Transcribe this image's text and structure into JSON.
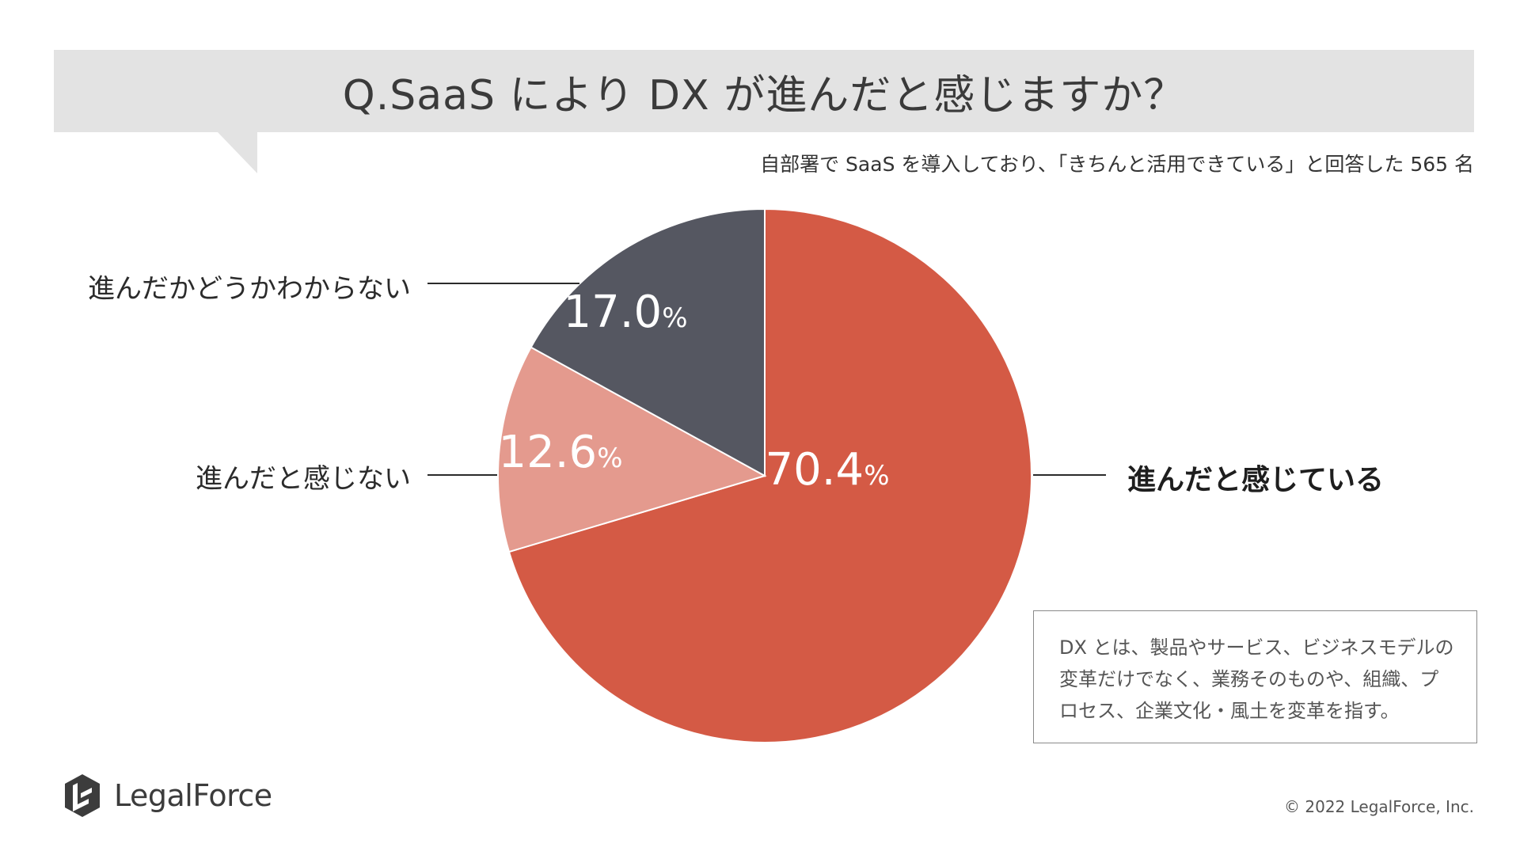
{
  "header": {
    "title": "Q.SaaS により DX が進んだと感じますか？",
    "subtitle": "自部署で SaaS を導入しており、「きちんと活用できている」と回答した 565 名"
  },
  "chart_data": {
    "type": "pie",
    "title": "Q.SaaS により DX が進んだと感じますか？",
    "slices": [
      {
        "label": "進んだと感じている",
        "value": 70.4,
        "display": "70.4",
        "unit": "%",
        "color": "#d45a45"
      },
      {
        "label": "進んだと感じない",
        "value": 12.6,
        "display": "12.6",
        "unit": "%",
        "color": "#e49a8e"
      },
      {
        "label": "進んだかどうかわからない",
        "value": 17.0,
        "display": "17.0",
        "unit": "%",
        "color": "#555761"
      }
    ],
    "start_angle": "12 o'clock",
    "direction": "clockwise"
  },
  "note": {
    "lines": [
      "DX とは、製品やサービス、ビジネスモデルの",
      "変革だけでなく、業務そのものや、組織、プ",
      "ロセス、企業文化・風土を変革を指す。"
    ]
  },
  "footer": {
    "logo_text": "LegalForce",
    "logo_icon": "legalforce-logo-icon",
    "copyright": "© 2022 LegalForce, Inc."
  }
}
